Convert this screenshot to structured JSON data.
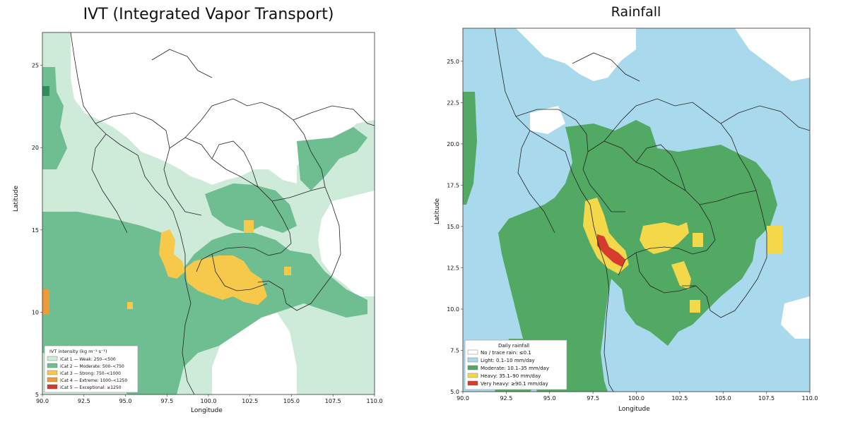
{
  "left": {
    "title": "IVT (Integrated Vapor Transport)",
    "xlabel": "Longitude",
    "ylabel": "Latitude",
    "xlim": [
      90,
      110
    ],
    "ylim": [
      5,
      27
    ],
    "xticks": [
      "90.0",
      "92.5",
      "95.0",
      "97.5",
      "100.0",
      "102.5",
      "105.0",
      "107.5",
      "110.0"
    ],
    "yticks": [
      "5",
      "10",
      "15",
      "20",
      "25"
    ],
    "legend": {
      "title": "IVT intensity (kg m⁻¹ s⁻¹)",
      "placement": "bottom-left",
      "items": [
        {
          "label": "iCat 1 — Weak: 250–<500",
          "color": "#cdebd8"
        },
        {
          "label": "iCat 2 — Moderate: 500–<750",
          "color": "#6fbe92"
        },
        {
          "label": "iCat 3 — Strong: 750–<1000",
          "color": "#f6c94b"
        },
        {
          "label": "iCat 4 — Extreme: 1000–<1250",
          "color": "#ef9a3a"
        },
        {
          "label": "iCat 5 — Exceptional: ≥1250",
          "color": "#d23a2a"
        }
      ]
    }
  },
  "right": {
    "title": "Rainfall",
    "xlabel": "Longitude",
    "ylabel": "Latitude",
    "xlim": [
      90,
      110
    ],
    "ylim": [
      5,
      27
    ],
    "xticks": [
      "90.0",
      "92.5",
      "95.0",
      "97.5",
      "100.0",
      "102.5",
      "105.0",
      "107.5",
      "110.0"
    ],
    "yticks": [
      "5.0",
      "7.5",
      "10.0",
      "12.5",
      "15.0",
      "17.5",
      "20.0",
      "22.5",
      "25.0"
    ],
    "legend": {
      "title": "Daily rainfall",
      "placement": "bottom-left",
      "items": [
        {
          "label": "No / trace rain: ≤0.1",
          "color": "#ffffff"
        },
        {
          "label": "Light: 0.1–10 mm/day",
          "color": "#a9d9ec"
        },
        {
          "label": "Moderate: 10.1–35 mm/day",
          "color": "#52a964"
        },
        {
          "label": "Heavy: 35.1–90 mm/day",
          "color": "#f3d84a"
        },
        {
          "label": "Very heavy: ≥90.1 mm/day",
          "color": "#d63b2b"
        }
      ]
    }
  }
}
